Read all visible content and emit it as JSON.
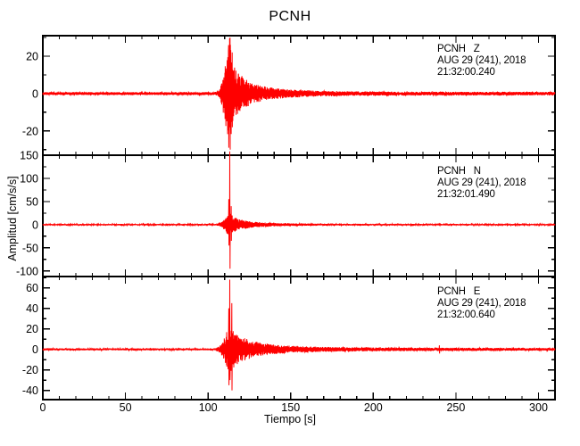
{
  "title": "PCNH",
  "xlabel": "Tiempo [s]",
  "ylabel": "Amplitud [cm/s/s]",
  "colors": {
    "trace": "#ff0000",
    "axis": "#000000",
    "background": "#ffffff"
  },
  "chart_data": {
    "type": "line",
    "title": "PCNH",
    "xlabel": "Tiempo [s]",
    "ylabel": "Amplitud [cm/s/s]",
    "legend": "none",
    "grid": false,
    "x_axis": {
      "min": 0,
      "max": 310,
      "major_tick": 50,
      "minor_tick": 10,
      "tick_labels": [
        "0",
        "50",
        "100",
        "150",
        "200",
        "250",
        "300"
      ]
    },
    "event_onset_s": 107,
    "main_arrival_s": 113,
    "panels": [
      {
        "station": "PCNH",
        "channel": "Z",
        "label_lines": [
          "PCNH   Z",
          "AUG 29 (241), 2018",
          "21:32:00.240"
        ],
        "ylim": [
          -33,
          31
        ],
        "yticks": [
          20,
          0,
          -20
        ],
        "y_minor_interval": 10,
        "noise_amplitude": 0.8,
        "envelope": [
          [
            0,
            0.8
          ],
          [
            104,
            0.8
          ],
          [
            107,
            2
          ],
          [
            108,
            6
          ],
          [
            110,
            14
          ],
          [
            112,
            24
          ],
          [
            113,
            30
          ],
          [
            115,
            17
          ],
          [
            118,
            12
          ],
          [
            122,
            8
          ],
          [
            127,
            5.5
          ],
          [
            133,
            4
          ],
          [
            140,
            3
          ],
          [
            150,
            2.2
          ],
          [
            165,
            1.6
          ],
          [
            185,
            1.2
          ],
          [
            220,
            1.0
          ],
          [
            310,
            0.9
          ]
        ],
        "spikes": [
          {
            "t": 112.4,
            "up": 26,
            "down": -29
          },
          {
            "t": 113.3,
            "up": 30,
            "down": -30
          },
          {
            "t": 114.6,
            "up": 22,
            "down": -18
          }
        ],
        "seed": 11
      },
      {
        "station": "PCNH",
        "channel": "N",
        "label_lines": [
          "PCNH   N",
          "AUG 29 (241), 2018",
          "21:32:01.490"
        ],
        "ylim": [
          -112,
          150
        ],
        "yticks": [
          150,
          100,
          50,
          0,
          -50,
          -100
        ],
        "y_minor_interval": 25,
        "noise_amplitude": 1.5,
        "envelope": [
          [
            0,
            1.5
          ],
          [
            105,
            1.5
          ],
          [
            108,
            5
          ],
          [
            110,
            12
          ],
          [
            112,
            22
          ],
          [
            113,
            28
          ],
          [
            115,
            18
          ],
          [
            118,
            13
          ],
          [
            122,
            9
          ],
          [
            128,
            6
          ],
          [
            135,
            4.5
          ],
          [
            145,
            3.2
          ],
          [
            160,
            2.4
          ],
          [
            180,
            2
          ],
          [
            220,
            1.7
          ],
          [
            310,
            1.5
          ]
        ],
        "spikes": [
          {
            "t": 112.5,
            "up": 55,
            "down": -45
          },
          {
            "t": 113.2,
            "up": 158,
            "down": -95
          },
          {
            "t": 114.0,
            "up": 40,
            "down": -35
          }
        ],
        "seed": 22
      },
      {
        "station": "PCNH",
        "channel": "E",
        "label_lines": [
          "PCNH   E",
          "AUG 29 (241), 2018",
          "21:32:00.640"
        ],
        "ylim": [
          -49,
          71
        ],
        "yticks": [
          60,
          40,
          20,
          0,
          -20,
          -40
        ],
        "y_minor_interval": 10,
        "noise_amplitude": 1.0,
        "envelope": [
          [
            0,
            1
          ],
          [
            104,
            1
          ],
          [
            107,
            3
          ],
          [
            109,
            8
          ],
          [
            111,
            16
          ],
          [
            113,
            24
          ],
          [
            115,
            19
          ],
          [
            118,
            14
          ],
          [
            122,
            11
          ],
          [
            127,
            8
          ],
          [
            133,
            6
          ],
          [
            140,
            4.5
          ],
          [
            150,
            3.5
          ],
          [
            160,
            2.8
          ],
          [
            175,
            2.2
          ],
          [
            200,
            1.8
          ],
          [
            310,
            1.3
          ]
        ],
        "spikes": [
          {
            "t": 112.6,
            "up": 40,
            "down": -35
          },
          {
            "t": 113.1,
            "up": 68,
            "down": -30
          },
          {
            "t": 114.3,
            "up": 45,
            "down": -40
          },
          {
            "t": 240,
            "up": 4,
            "down": -4
          }
        ],
        "seed": 33
      }
    ]
  }
}
